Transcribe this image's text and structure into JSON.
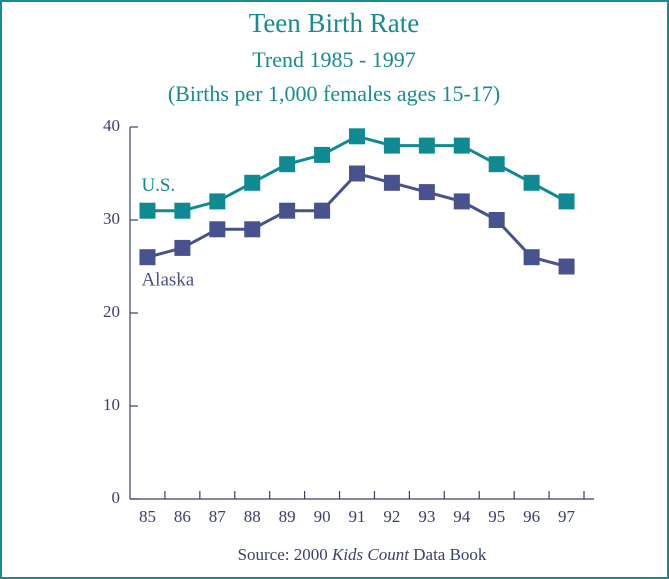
{
  "chart_data": {
    "type": "line",
    "title": "Teen Birth Rate",
    "subtitle": "Trend 1985 - 1997",
    "subtitle2": "(Births per 1,000 females ages 15-17)",
    "categories": [
      "85",
      "86",
      "87",
      "88",
      "89",
      "90",
      "91",
      "92",
      "93",
      "94",
      "95",
      "96",
      "97"
    ],
    "series": [
      {
        "name": "U.S.",
        "color": "#0f8a92",
        "values": [
          31,
          31,
          32,
          34,
          36,
          37,
          39,
          38,
          38,
          38,
          36,
          34,
          32
        ]
      },
      {
        "name": "Alaska",
        "color": "#48528e",
        "values": [
          26,
          27,
          29,
          29,
          31,
          31,
          35,
          34,
          33,
          32,
          30,
          26,
          25
        ]
      }
    ],
    "ylim": [
      0,
      40
    ],
    "yticks": [
      0,
      10,
      20,
      30,
      40
    ],
    "source": [
      "Source: 2000 ",
      "Kids Count",
      " Data Book"
    ]
  }
}
